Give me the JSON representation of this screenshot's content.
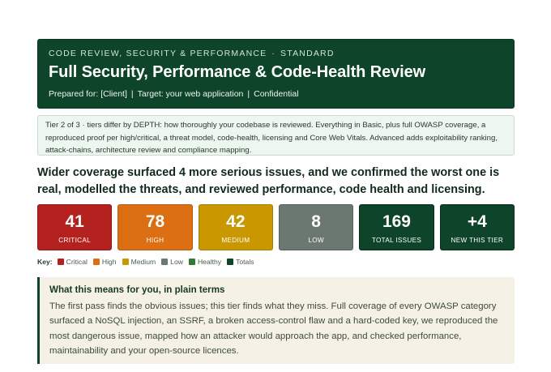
{
  "header": {
    "eyebrow_left": "CODE REVIEW, SECURITY & PERFORMANCE",
    "eyebrow_sep": "·",
    "eyebrow_right": "STANDARD",
    "title": "Full Security, Performance & Code-Health Review",
    "meta_prepared": "Prepared for: [Client]",
    "meta_target": "Target: your web application",
    "meta_confidential": "Confidential",
    "meta_sep": "|"
  },
  "tier_note": "Tier 2 of 3 · tiers differ by DEPTH: how thoroughly your codebase is reviewed. Everything in Basic, plus full OWASP coverage, a reproduced proof per high/critical, a threat model, code-health, licensing and Core Web Vitals. Advanced adds exploitability ranking, attack-chains, architecture review and compliance mapping.",
  "headline": "Wider coverage surfaced 4 more serious issues, and we confirmed the worst one is real, modelled the threats, and reviewed performance, code health and licensing.",
  "stats": [
    {
      "value": "41",
      "label": "CRITICAL"
    },
    {
      "value": "78",
      "label": "HIGH"
    },
    {
      "value": "42",
      "label": "MEDIUM"
    },
    {
      "value": "8",
      "label": "LOW"
    },
    {
      "value": "169",
      "label": "TOTAL ISSUES"
    },
    {
      "value": "+4",
      "label": "NEW THIS TIER"
    }
  ],
  "key": {
    "label": "Key:",
    "items": [
      {
        "label": "Critical",
        "color": "#b3221f"
      },
      {
        "label": "High",
        "color": "#dc6f14"
      },
      {
        "label": "Medium",
        "color": "#c99700"
      },
      {
        "label": "Low",
        "color": "#6b7771"
      },
      {
        "label": "Healthy",
        "color": "#2e7d32"
      },
      {
        "label": "Totals",
        "color": "#0e4429"
      }
    ]
  },
  "plain": {
    "title": "What this means for you, in plain terms",
    "body": "The first pass finds the obvious issues; this tier finds what they miss. Full coverage of every OWASP category surfaced a NoSQL injection, an SSRF, a broken access-control flaw and a hard-coded key, we reproduced the most dangerous issue, mapped how an attacker would approach the app, and checked performance, maintainability and your open-source licences."
  },
  "colors": {
    "brand_green": "#0e4429",
    "critical": "#b3221f",
    "high": "#dc6f14",
    "medium": "#c99700",
    "low": "#6b7771"
  }
}
